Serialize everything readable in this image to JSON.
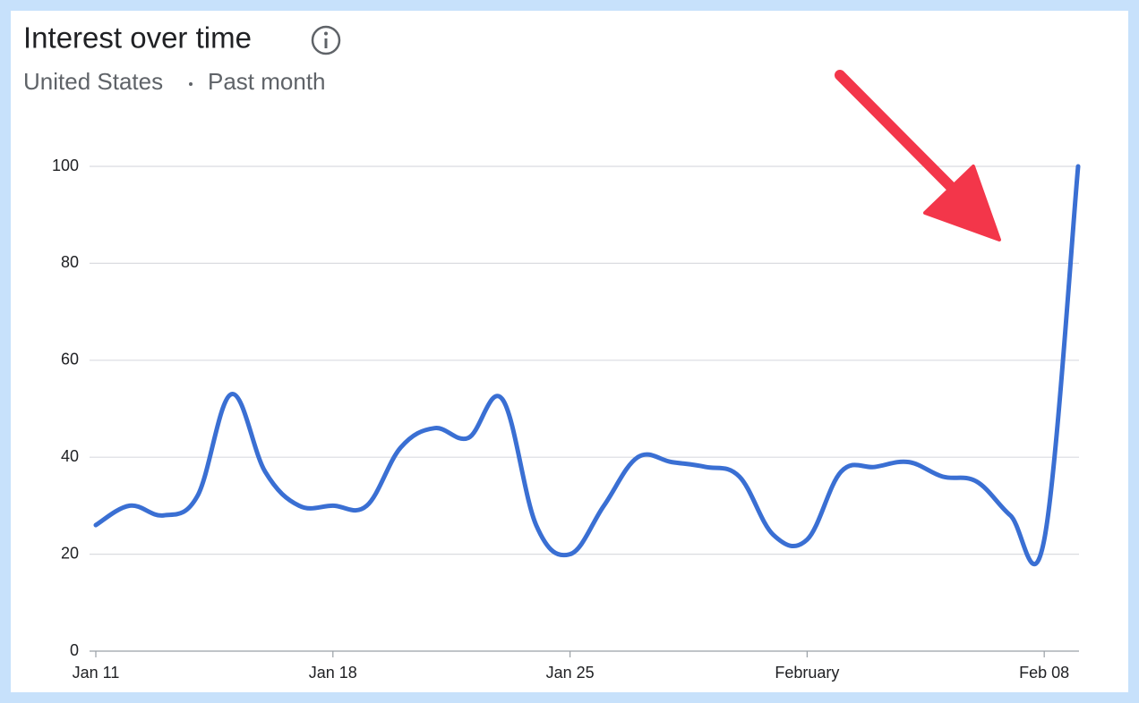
{
  "chart_data": {
    "type": "line",
    "title": "Interest over time",
    "location": "United States",
    "period": "Past month",
    "categories": [
      "Jan 11",
      null,
      null,
      null,
      null,
      null,
      null,
      "Jan 18",
      null,
      null,
      null,
      null,
      null,
      null,
      "Jan 25",
      null,
      null,
      null,
      null,
      null,
      null,
      "February",
      null,
      null,
      null,
      null,
      null,
      null,
      "Feb 08",
      null
    ],
    "series": [
      {
        "color": "#3a6fd3",
        "values": [
          26,
          30,
          28,
          32,
          53,
          37,
          30,
          30,
          30,
          42,
          46,
          44,
          52,
          26,
          20,
          30,
          40,
          39,
          38,
          36,
          24,
          23,
          37,
          38,
          39,
          36,
          35,
          28,
          23,
          100
        ]
      }
    ],
    "ylim": [
      0,
      100
    ],
    "yticks": [
      0,
      20,
      40,
      60,
      80,
      100
    ],
    "grid": true
  }
}
